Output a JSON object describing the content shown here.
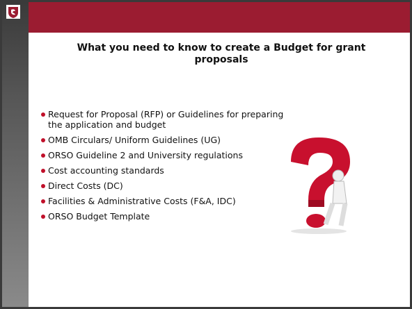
{
  "header": {
    "title": "What you need to know to create a Budget for grant proposals"
  },
  "bullets": [
    "Request for Proposal (RFP) or Guidelines for preparing the application and budget",
    "OMB Circulars/ Uniform Guidelines (UG)",
    "ORSO Guideline 2 and University regulations",
    "Cost accounting standards",
    "Direct Costs (DC)",
    "Facilities & Administrative Costs (F&A, IDC)",
    "ORSO Budget Template"
  ]
}
